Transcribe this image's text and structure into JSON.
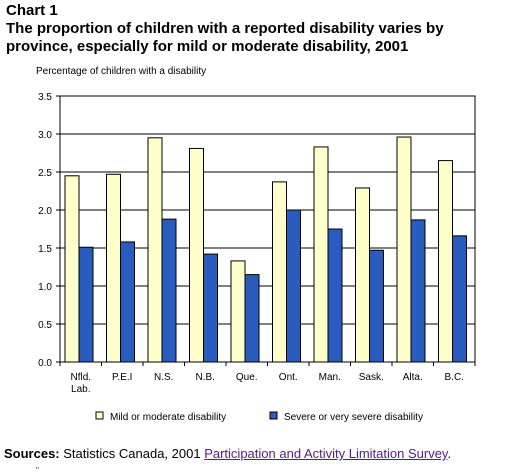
{
  "heading": {
    "label": "Chart 1",
    "title": "The proportion of children with a reported disability varies by province, especially for mild or moderate disability, 2001"
  },
  "chart_data": {
    "type": "bar",
    "title": "The proportion of children with a reported disability varies by province, especially for mild or moderate disability, 2001",
    "ylabel": "Percentage of children with a disability",
    "xlabel": "",
    "categories": [
      [
        "Nfld.",
        "Lab."
      ],
      [
        "P.E.I"
      ],
      [
        "N.S."
      ],
      [
        "N.B."
      ],
      [
        "Que."
      ],
      [
        "Ont."
      ],
      [
        "Man."
      ],
      [
        "Sask."
      ],
      [
        "Alta."
      ],
      [
        "B.C."
      ]
    ],
    "series": [
      {
        "name": "Mild or moderate disability",
        "color": "#ffffcc",
        "values": [
          2.45,
          2.47,
          2.95,
          2.81,
          1.33,
          2.37,
          2.83,
          2.29,
          2.96,
          2.65
        ]
      },
      {
        "name": "Severe or very severe disability",
        "color": "#2a5cbf",
        "values": [
          1.51,
          1.58,
          1.88,
          1.42,
          1.15,
          2.0,
          1.75,
          1.47,
          1.87,
          1.66
        ]
      }
    ],
    "ylim": [
      0,
      3.5
    ],
    "yticks": [
      "0.0",
      "0.5",
      "1.0",
      "1.5",
      "2.0",
      "2.5",
      "3.0",
      "3.5"
    ],
    "grid": true,
    "legend_position": "bottom"
  },
  "sources": {
    "label": "Sources:",
    "text": "Statistics Canada, 2001",
    "link_text": "Participation and Activity Limitation Survey",
    "suffix": "."
  },
  "fine_mark": "\""
}
